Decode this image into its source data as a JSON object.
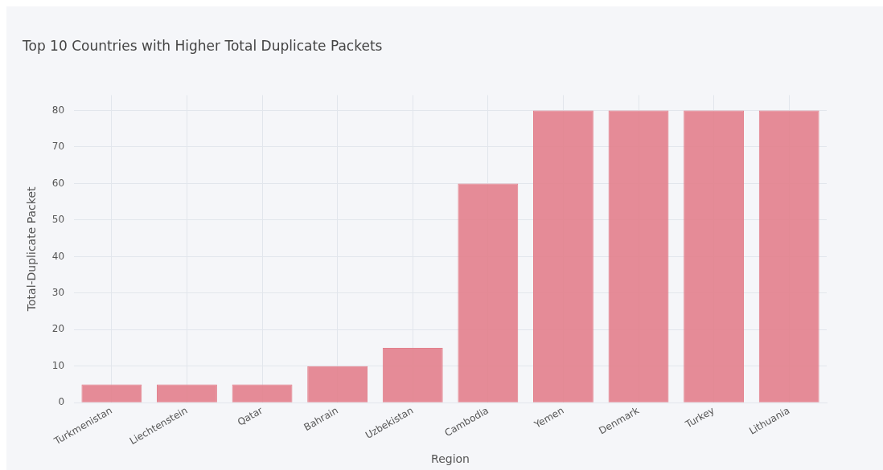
{
  "chart_data": {
    "type": "bar",
    "title": "Top 10 Countries with Higher Total Duplicate Packets",
    "xlabel": "Region",
    "ylabel": "Total-Duplicate Packet",
    "categories": [
      "Turkmenistan",
      "Liechtenstein",
      "Qatar",
      "Bahrain",
      "Uzbekistan",
      "Cambodia",
      "Yemen",
      "Denmark",
      "Turkey",
      "Lithuania"
    ],
    "values": [
      5,
      5,
      5,
      10,
      15,
      60,
      80,
      80,
      80,
      80
    ],
    "color": "#e3808c",
    "ylim": [
      0,
      84.2
    ],
    "yticks": [
      0,
      10,
      20,
      30,
      40,
      50,
      60,
      70,
      80
    ],
    "grid": true,
    "legend": false
  }
}
